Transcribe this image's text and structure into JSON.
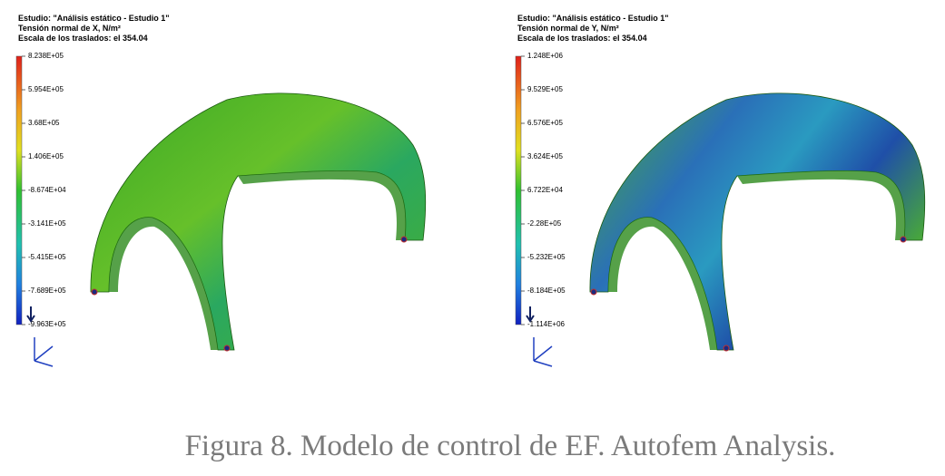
{
  "panels": [
    {
      "header": [
        "Estudio: \"Análisis estático - Estudio 1\"",
        "Tensión normal de X, N/m²",
        "Escala de los traslados: el 354.04"
      ],
      "legend": [
        "8.238E+05",
        "5.954E+05",
        "3.68E+05",
        "1.406E+05",
        "-8.674E+04",
        "-3.141E+05",
        "-5.415E+05",
        "-7.689E+05",
        "-9.963E+05"
      ]
    },
    {
      "header": [
        "Estudio: \"Análisis estático - Estudio 1\"",
        "Tensión normal de Y, N/m²",
        "Escala de los traslados: el 354.04"
      ],
      "legend": [
        "1.248E+06",
        "9.529E+05",
        "6.576E+05",
        "3.624E+05",
        "6.722E+04",
        "-2.28E+05",
        "-5.232E+05",
        "-8.184E+05",
        "-1.114E+06"
      ]
    }
  ],
  "caption": "Figura 8. Modelo de control de EF. Autofem Analysis."
}
